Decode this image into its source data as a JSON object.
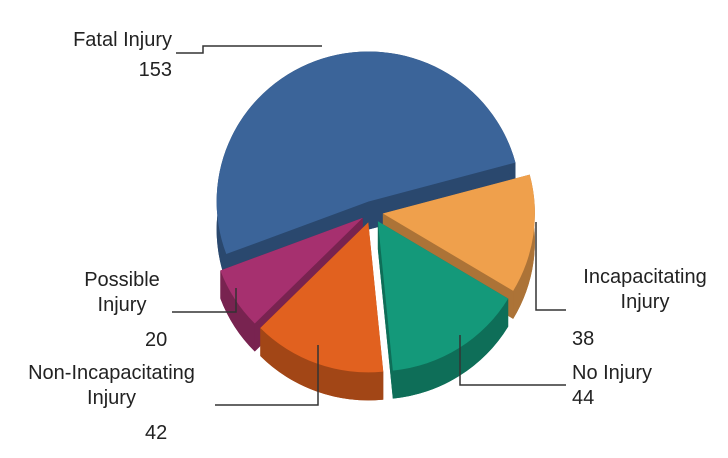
{
  "chart_data": {
    "type": "pie",
    "categories": [
      "Fatal Injury",
      "Incapacitating Injury",
      "No Injury",
      "Non-Incapacitating Injury",
      "Possible Injury"
    ],
    "values": [
      153,
      38,
      44,
      42,
      20
    ],
    "colors": [
      "#3b6499",
      "#efa04c",
      "#14997a",
      "#e1611f",
      "#a6306f"
    ]
  }
}
